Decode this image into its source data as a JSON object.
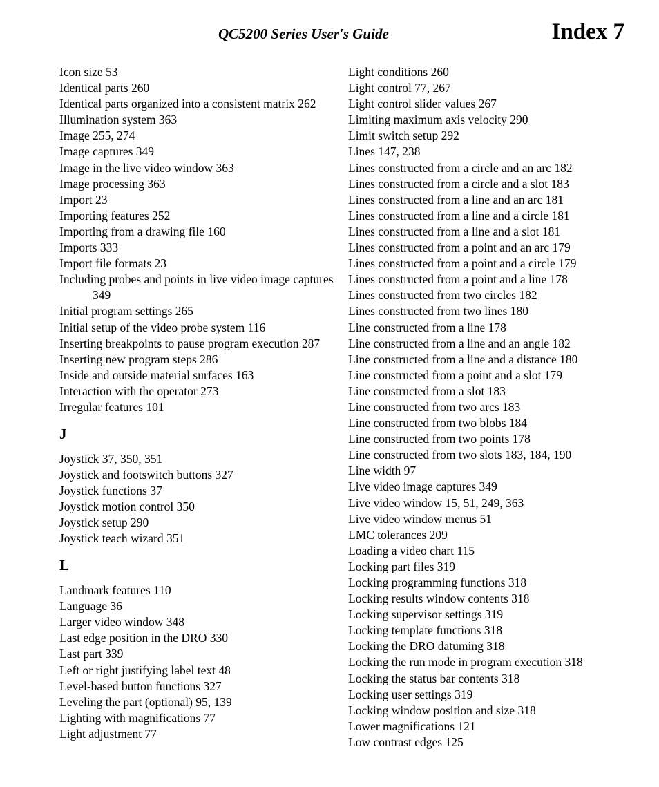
{
  "header": {
    "title": "QC5200 Series User's Guide",
    "index_label": "Index 7"
  },
  "left_column": [
    {
      "type": "entry",
      "text": "Icon size  53"
    },
    {
      "type": "entry",
      "text": "Identical parts  260"
    },
    {
      "type": "entry",
      "text": "Identical parts organized into a consistent matrix  262"
    },
    {
      "type": "entry",
      "text": "Illumination system  363"
    },
    {
      "type": "entry",
      "text": "Image  255, 274"
    },
    {
      "type": "entry",
      "text": "Image captures  349"
    },
    {
      "type": "entry",
      "text": "Image in the live video window  363"
    },
    {
      "type": "entry",
      "text": "Image processing  363"
    },
    {
      "type": "entry",
      "text": "Import  23"
    },
    {
      "type": "entry",
      "text": "Importing features  252"
    },
    {
      "type": "entry",
      "text": "Importing from a drawing file  160"
    },
    {
      "type": "entry",
      "text": "Imports  333"
    },
    {
      "type": "entry",
      "text": "Import file formats  23"
    },
    {
      "type": "entry",
      "text": "Including probes and points in live video image captures  349"
    },
    {
      "type": "entry",
      "text": "Initial program settings  265"
    },
    {
      "type": "entry",
      "text": "Initial setup of the video probe system  116"
    },
    {
      "type": "entry",
      "text": "Inserting breakpoints to pause program execution  287"
    },
    {
      "type": "entry",
      "text": "Inserting new program steps  286"
    },
    {
      "type": "entry",
      "text": "Inside and outside material surfaces  163"
    },
    {
      "type": "entry",
      "text": "Interaction with the operator  273"
    },
    {
      "type": "entry",
      "text": "Irregular features  101"
    },
    {
      "type": "letter",
      "text": "J"
    },
    {
      "type": "entry",
      "text": "Joystick  37, 350, 351"
    },
    {
      "type": "entry",
      "text": "Joystick and footswitch buttons  327"
    },
    {
      "type": "entry",
      "text": "Joystick functions  37"
    },
    {
      "type": "entry",
      "text": "Joystick motion control  350"
    },
    {
      "type": "entry",
      "text": "Joystick setup  290"
    },
    {
      "type": "entry",
      "text": "Joystick teach wizard  351"
    },
    {
      "type": "letter",
      "text": "L"
    },
    {
      "type": "entry",
      "text": "Landmark features  110"
    },
    {
      "type": "entry",
      "text": "Language  36"
    },
    {
      "type": "entry",
      "text": "Larger video window  348"
    },
    {
      "type": "entry",
      "text": "Last edge position in the DRO  330"
    },
    {
      "type": "entry",
      "text": "Last part  339"
    },
    {
      "type": "entry",
      "text": "Left or right justifying label text  48"
    },
    {
      "type": "entry",
      "text": "Level-based button functions  327"
    },
    {
      "type": "entry",
      "text": "Leveling the part (optional)  95, 139"
    },
    {
      "type": "entry",
      "text": "Lighting with magnifications  77"
    },
    {
      "type": "entry",
      "text": "Light adjustment  77"
    }
  ],
  "right_column": [
    {
      "type": "entry",
      "text": "Light conditions  260"
    },
    {
      "type": "entry",
      "text": "Light control  77, 267"
    },
    {
      "type": "entry",
      "text": "Light control slider values  267"
    },
    {
      "type": "entry",
      "text": "Limiting maximum axis velocity  290"
    },
    {
      "type": "entry",
      "text": "Limit switch setup  292"
    },
    {
      "type": "entry",
      "text": "Lines  147, 238"
    },
    {
      "type": "entry",
      "text": "Lines constructed from a circle and an arc  182"
    },
    {
      "type": "entry",
      "text": "Lines constructed from a circle and a slot  183"
    },
    {
      "type": "entry",
      "text": "Lines constructed from a line and an arc  181"
    },
    {
      "type": "entry",
      "text": "Lines constructed from a line and a circle  181"
    },
    {
      "type": "entry",
      "text": "Lines constructed from a line and a slot  181"
    },
    {
      "type": "entry",
      "text": "Lines constructed from a point and an arc  179"
    },
    {
      "type": "entry",
      "text": "Lines constructed from a point and a circle  179"
    },
    {
      "type": "entry",
      "text": "Lines constructed from a point and a line  178"
    },
    {
      "type": "entry",
      "text": "Lines constructed from two circles  182"
    },
    {
      "type": "entry",
      "text": "Lines constructed from two lines  180"
    },
    {
      "type": "entry",
      "text": "Line constructed from a line  178"
    },
    {
      "type": "entry",
      "text": "Line constructed from a line and an angle  182"
    },
    {
      "type": "entry",
      "text": "Line constructed from a line and a distance  180"
    },
    {
      "type": "entry",
      "text": "Line constructed from a point and a slot  179"
    },
    {
      "type": "entry",
      "text": "Line constructed from a slot  183"
    },
    {
      "type": "entry",
      "text": "Line constructed from two arcs  183"
    },
    {
      "type": "entry",
      "text": "Line constructed from two blobs  184"
    },
    {
      "type": "entry",
      "text": "Line constructed from two points  178"
    },
    {
      "type": "entry",
      "text": "Line constructed from two slots  183, 184, 190"
    },
    {
      "type": "entry",
      "text": "Line width  97"
    },
    {
      "type": "entry",
      "text": "Live video image captures  349"
    },
    {
      "type": "entry",
      "text": "Live video window  15, 51, 249, 363"
    },
    {
      "type": "entry",
      "text": "Live video window menus  51"
    },
    {
      "type": "entry",
      "text": "LMC tolerances  209"
    },
    {
      "type": "entry",
      "text": "Loading a video chart  115"
    },
    {
      "type": "entry",
      "text": "Locking part files  319"
    },
    {
      "type": "entry",
      "text": "Locking programming functions  318"
    },
    {
      "type": "entry",
      "text": "Locking results window contents  318"
    },
    {
      "type": "entry",
      "text": "Locking supervisor settings  319"
    },
    {
      "type": "entry",
      "text": "Locking template functions  318"
    },
    {
      "type": "entry",
      "text": "Locking the DRO datuming  318"
    },
    {
      "type": "entry",
      "text": "Locking the run mode in program execution  318"
    },
    {
      "type": "entry",
      "text": "Locking the status bar contents  318"
    },
    {
      "type": "entry",
      "text": "Locking user settings  319"
    },
    {
      "type": "entry",
      "text": "Locking window position and size  318"
    },
    {
      "type": "entry",
      "text": "Lower magnifications  121"
    },
    {
      "type": "entry",
      "text": "Low contrast edges  125"
    }
  ]
}
